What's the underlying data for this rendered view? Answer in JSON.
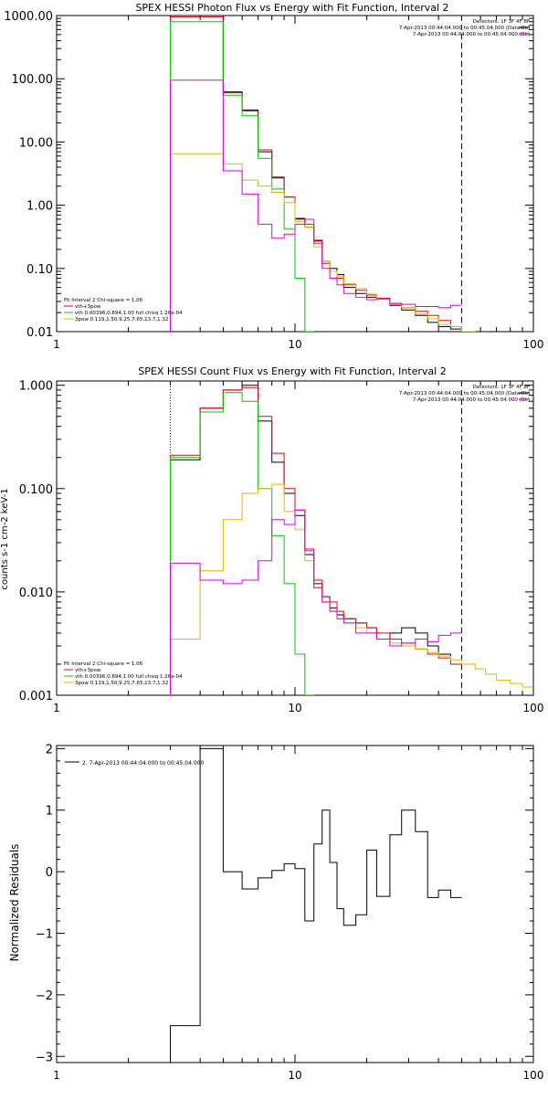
{
  "chart_data": [
    {
      "type": "line",
      "title": "SPEX HESSI Photon Flux vs Energy with Fit Function, Interval 2",
      "xscale": "log",
      "yscale": "log",
      "xlim": [
        1,
        100
      ],
      "ylim": [
        0.01,
        1000
      ],
      "xticks": [
        1,
        10,
        100
      ],
      "xtick_labels": [
        "1",
        "10",
        "100"
      ],
      "yticks": [
        0.01,
        0.1,
        1,
        10,
        100,
        1000
      ],
      "ytick_labels": [
        "0.01",
        "0.10",
        "1.00",
        "10.00",
        "100.00",
        "1000.00"
      ],
      "vlines": [
        {
          "x": 3,
          "style": "dotted"
        },
        {
          "x": 50,
          "style": "dashed"
        }
      ],
      "annotation_lines": [
        "Detectors: 1F 3F 4F 8F",
        "7-Apr-2013 00:44:04.000 to 00:45:04.000 (Data-Bk)",
        "7-Apr-2013 00:44:04.000 to 00:45:04.000 (Bk)"
      ],
      "fit_text": {
        "header": "Fit Interval  2   Chi-square = 1.06",
        "lines": [
          {
            "color": "#e8001a",
            "text": "vth+3pow"
          },
          {
            "color": "#00c800",
            "text": "vth 0.00396,0.894,1.00   full chisq 1.26e-04"
          },
          {
            "color": "#ddbb00",
            "text": "3pow 0.119,1.50,9.25,7.65,13.7,1.32"
          }
        ]
      },
      "x_edges": [
        3,
        4,
        5,
        6,
        7,
        8,
        9,
        10,
        11,
        12,
        13,
        14,
        15,
        16,
        18,
        20,
        22,
        25,
        28,
        32,
        36,
        40,
        45,
        50,
        57,
        63
      ],
      "series": [
        {
          "color": "#000000",
          "values": [
            1000,
            1000,
            62,
            32,
            7,
            2.7,
            1.35,
            0.62,
            0.45,
            0.27,
            0.13,
            0.1,
            0.08,
            0.05,
            0.04,
            0.035,
            0.033,
            0.026,
            0.022,
            0.018,
            0.014,
            0.012,
            0.011,
            null,
            null
          ]
        },
        {
          "color": "#e8001a",
          "values": [
            950,
            950,
            60,
            31,
            7.5,
            2.8,
            1.35,
            0.6,
            0.5,
            0.28,
            0.12,
            0.09,
            0.07,
            0.055,
            0.045,
            0.038,
            0.034,
            0.028,
            0.024,
            0.021,
            0.018,
            0.015,
            0.012,
            null,
            null
          ]
        },
        {
          "color": "#00c800",
          "values": [
            800,
            800,
            55,
            26,
            5.5,
            1.8,
            0.42,
            0.07,
            0.01,
            null,
            null,
            null,
            null,
            null,
            null,
            null,
            null,
            null,
            null,
            null,
            null,
            null,
            null,
            null,
            null
          ]
        },
        {
          "color": "#ddbb00",
          "values": [
            6.5,
            6.5,
            4.5,
            2.5,
            2,
            1.6,
            1.1,
            0.55,
            0.45,
            0.22,
            0.13,
            0.09,
            0.075,
            0.058,
            0.048,
            0.039,
            0.033,
            0.027,
            0.024,
            0.019,
            0.016,
            0.013,
            0.012,
            0.01,
            0.009
          ]
        },
        {
          "color": "#dd00dd",
          "values": [
            95,
            95,
            3.5,
            1.5,
            0.5,
            0.3,
            0.35,
            0.5,
            0.6,
            0.25,
            0.1,
            0.07,
            0.055,
            0.04,
            0.035,
            0.032,
            0.033,
            0.028,
            0.027,
            0.025,
            0.025,
            0.024,
            0.026,
            null,
            null
          ]
        }
      ]
    },
    {
      "type": "line",
      "title": "SPEX HESSI Count Flux vs Energy with Fit Function, Interval 2",
      "ylabel": "counts s-1 cm-2 keV-1",
      "xscale": "log",
      "yscale": "log",
      "xlim": [
        1,
        100
      ],
      "ylim": [
        0.001,
        1.1
      ],
      "xticks": [
        1,
        10,
        100
      ],
      "xtick_labels": [
        "1",
        "10",
        "100"
      ],
      "yticks": [
        0.001,
        0.01,
        0.1,
        1
      ],
      "ytick_labels": [
        "0.001",
        "0.010",
        "0.100",
        "1.000"
      ],
      "vlines": [
        {
          "x": 3,
          "style": "dotted"
        },
        {
          "x": 50,
          "style": "dashed"
        }
      ],
      "annotation_lines": [
        "Detectors: 1F 3F 4F 8F",
        "7-Apr-2013 00:44:04.000 to 00:45:04.000 (Data-Bk)",
        "7-Apr-2013 00:44:04.000 to 00:45:04.000 (Bk)"
      ],
      "fit_text": {
        "header": "Fit Interval  2   Chi-square = 1.06",
        "lines": [
          {
            "color": "#e8001a",
            "text": "vth+3pow"
          },
          {
            "color": "#00c800",
            "text": "vth 0.00396,0.894,1.00   full chisq 1.26e-04"
          },
          {
            "color": "#ddbb00",
            "text": "3pow 0.119,1.50,9.25,7.65,13.7,1.32"
          }
        ]
      },
      "x_edges": [
        3,
        4,
        5,
        6,
        7,
        8,
        9,
        10,
        11,
        12,
        13,
        14,
        15,
        16,
        18,
        20,
        22,
        25,
        28,
        32,
        36,
        40,
        45,
        50,
        57,
        63,
        70,
        80,
        90,
        100
      ],
      "series": [
        {
          "color": "#000000",
          "values": [
            0.19,
            0.6,
            0.9,
            1.0,
            0.45,
            0.18,
            0.09,
            0.055,
            0.023,
            0.012,
            0.009,
            0.007,
            0.006,
            0.0055,
            0.005,
            0.0045,
            0.0035,
            0.004,
            0.0045,
            0.004,
            0.003,
            0.0025,
            0.002,
            null,
            null,
            null,
            null,
            null,
            null
          ]
        },
        {
          "color": "#e8001a",
          "values": [
            0.21,
            0.6,
            0.9,
            0.95,
            0.5,
            0.22,
            0.1,
            0.062,
            0.026,
            0.013,
            0.009,
            0.008,
            0.0065,
            0.0055,
            0.005,
            0.0045,
            0.004,
            0.0035,
            0.0032,
            0.0028,
            0.0025,
            0.0023,
            0.002,
            null,
            null,
            null,
            null,
            null,
            null
          ]
        },
        {
          "color": "#00c800",
          "values": [
            0.2,
            0.55,
            0.85,
            0.7,
            0.1,
            0.035,
            0.012,
            0.0025,
            0.001,
            null,
            null,
            null,
            null,
            null,
            null,
            null,
            null,
            null,
            null,
            null,
            null,
            null,
            null,
            null,
            null,
            null,
            null,
            null,
            null
          ]
        },
        {
          "color": "#ddbb00",
          "values": [
            0.0035,
            0.016,
            0.05,
            0.09,
            0.1,
            0.11,
            0.06,
            0.04,
            0.02,
            0.011,
            0.008,
            0.0065,
            0.0055,
            0.005,
            0.0045,
            0.004,
            0.0035,
            0.0032,
            0.003,
            0.0028,
            0.0026,
            0.0024,
            0.0022,
            0.002,
            0.0018,
            0.0016,
            0.0014,
            0.0013,
            0.0012
          ]
        },
        {
          "color": "#dd00dd",
          "values": [
            0.019,
            0.013,
            0.012,
            0.013,
            0.02,
            0.05,
            0.045,
            0.062,
            0.025,
            0.011,
            0.008,
            0.0065,
            0.0055,
            0.005,
            0.004,
            0.004,
            0.0035,
            0.003,
            0.0032,
            0.0035,
            0.0033,
            0.0038,
            0.004,
            null,
            null,
            null,
            null,
            null,
            null
          ]
        }
      ]
    },
    {
      "type": "line",
      "title": "",
      "ylabel": "Normalized Residuals",
      "xscale": "log",
      "yscale": "linear",
      "xlim": [
        1,
        100
      ],
      "ylim": [
        -3.1,
        2.05
      ],
      "xticks": [
        1,
        10,
        100
      ],
      "xtick_labels": [
        "1",
        "10",
        "100"
      ],
      "yticks": [
        -3,
        -2,
        -1,
        0,
        1,
        2
      ],
      "ytick_labels": [
        "−3",
        "−2",
        "−1",
        "0",
        "1",
        "2"
      ],
      "legend": "2.  7-Apr-2013 00:44:04.000 to 00:45:04.000",
      "x_edges": [
        3,
        4,
        4.5,
        5,
        6,
        7,
        8,
        9,
        10,
        11,
        12,
        13,
        14,
        15,
        16,
        18,
        20,
        22,
        25,
        28,
        32,
        36,
        40,
        45,
        50
      ],
      "series": [
        {
          "color": "#000000",
          "values": [
            -2.5,
            2.0,
            2.0,
            0.0,
            -0.28,
            -0.1,
            0.02,
            0.13,
            0.05,
            -0.8,
            0.45,
            1.0,
            0.15,
            -0.6,
            -0.87,
            -0.7,
            0.35,
            -0.4,
            0.6,
            1.0,
            0.65,
            -0.42,
            -0.3,
            -0.42
          ]
        }
      ]
    }
  ]
}
